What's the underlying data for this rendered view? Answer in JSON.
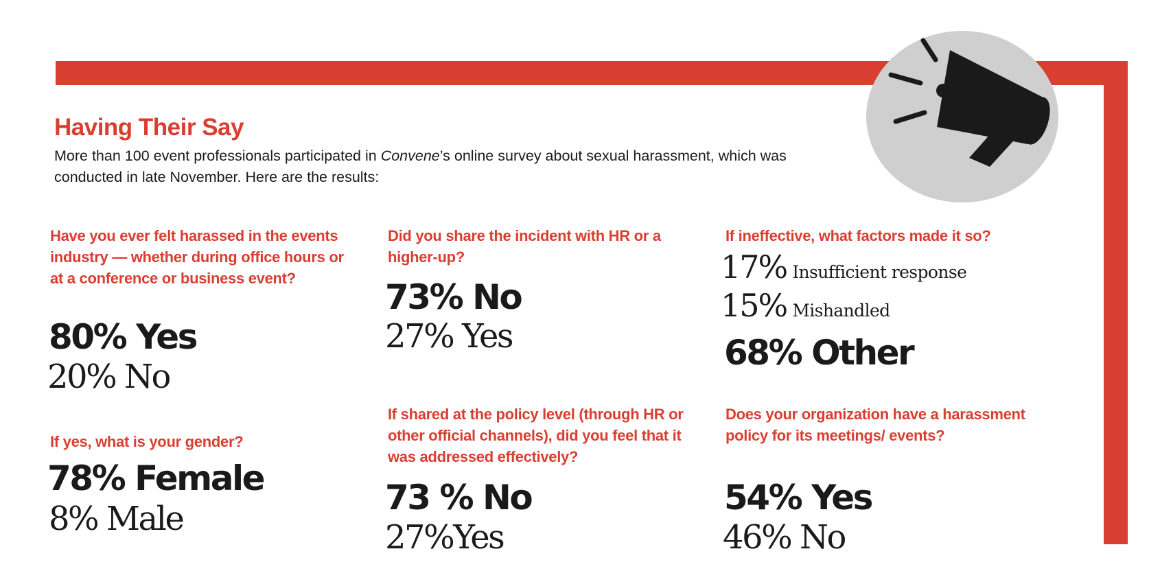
{
  "header": {
    "title": "Having Their Say",
    "intro_part1": "More than 100 event professionals participated in ",
    "intro_italic": "Convene",
    "intro_part2": "’s online survey about sexual harassment, which was conducted in late November. Here are the results:"
  },
  "icon": {
    "name": "megaphone-icon"
  },
  "colors": {
    "accent": "#d93f30",
    "circle": "#cfcfcf",
    "text": "#1a1a1a"
  },
  "questions": {
    "harassed": {
      "question": "Have you ever felt harassed in the events industry — whether during office hours or at a conference or business event?",
      "primary": "80% Yes",
      "secondary": "20% No"
    },
    "gender": {
      "question": "If yes, what is your gender?",
      "primary": "78% Female",
      "secondary": "8% Male"
    },
    "shared": {
      "question": "Did you share the incident with HR or a higher-up?",
      "primary": "73% No",
      "secondary": "27% Yes"
    },
    "addressed": {
      "question": "If shared at the policy level (through HR or other official channels), did you feel that it was addressed effectively?",
      "primary": "73 % No",
      "secondary": "27%Yes"
    },
    "factors": {
      "question": "If ineffective, what factors made it so?",
      "items": [
        {
          "pct": "17%",
          "label": "Insufficient response"
        },
        {
          "pct": "15%",
          "label": "Mishandled"
        }
      ],
      "primary": "68% Other"
    },
    "policy": {
      "question": "Does your organization have a harassment policy for its meetings/ events?",
      "primary": "54% Yes",
      "secondary": "46% No"
    }
  }
}
